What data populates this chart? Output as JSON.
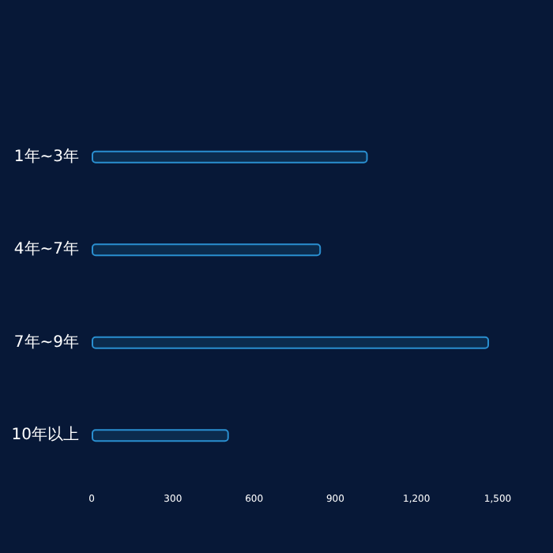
{
  "chart_data": {
    "type": "bar",
    "orientation": "horizontal",
    "categories": [
      "1年~3年",
      "4年~7年",
      "7年~9年",
      "10年以上"
    ],
    "values": [
      1020,
      847,
      1468,
      507
    ],
    "color": "#2a8fd0",
    "xlim": [
      0,
      1500
    ],
    "xticks": [
      0,
      {
        "value": 300,
        "label": "300"
      },
      {
        "value": 600,
        "label": "600"
      },
      {
        "value": 900,
        "label": "900"
      },
      {
        "value": 1200,
        "label": "1,200"
      },
      {
        "value": 1500,
        "label": "1,500"
      }
    ],
    "grid": false
  }
}
